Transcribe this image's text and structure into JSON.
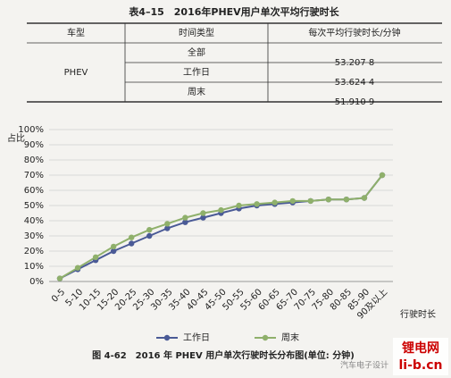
{
  "table": {
    "title": "表4–15　2016年PHEV用户单次平均行驶时长",
    "headers": [
      "车型",
      "时间类型",
      "每次平均行驶时长/分钟"
    ],
    "model": "PHEV",
    "rows": [
      [
        "全部",
        "53.207 8"
      ],
      [
        "工作日",
        "53.624 4"
      ],
      [
        "周末",
        "51.910 9"
      ]
    ]
  },
  "chart_data": {
    "type": "line",
    "ylabel": "占比",
    "xlabel": "行驶时长",
    "caption": "图 4-62　2016 年 PHEV 用户单次行驶时长分布图(单位: 分钟)",
    "categories": [
      "0-5",
      "5-10",
      "10-15",
      "15-20",
      "20-25",
      "25-30",
      "30-35",
      "35-40",
      "40-45",
      "45-50",
      "50-55",
      "55-60",
      "60-65",
      "65-70",
      "70-75",
      "75-80",
      "80-85",
      "85-90",
      "90及以上"
    ],
    "series": [
      {
        "name": "工作日",
        "color": "#4a5a96",
        "values": [
          2,
          8,
          14,
          20,
          25,
          30,
          35,
          39,
          42,
          45,
          48,
          50,
          51,
          52,
          53,
          54,
          54,
          55,
          70
        ]
      },
      {
        "name": "周末",
        "color": "#8fb06b",
        "values": [
          2,
          9,
          16,
          23,
          29,
          34,
          38,
          42,
          45,
          47,
          50,
          51,
          52,
          53,
          53,
          54,
          54,
          55,
          70
        ]
      }
    ],
    "ylim": [
      0,
      100
    ],
    "yticks": [
      {
        "value": 0,
        "label": "0%"
      },
      {
        "value": 10,
        "label": "10%"
      },
      {
        "value": 20,
        "label": "20%"
      },
      {
        "value": 30,
        "label": "30%"
      },
      {
        "value": 40,
        "label": "40%"
      },
      {
        "value": 50,
        "label": "50%"
      },
      {
        "value": 60,
        "label": "60%"
      },
      {
        "value": 70,
        "label": "70%"
      },
      {
        "value": 80,
        "label": "80%"
      },
      {
        "value": 90,
        "label": "90%"
      },
      {
        "value": 100,
        "label": "100%"
      }
    ],
    "grid": true,
    "legend": "bottom"
  },
  "watermark": {
    "top": "锂电网",
    "bottom": "li-b.cn",
    "note": "汽车电子设计"
  }
}
